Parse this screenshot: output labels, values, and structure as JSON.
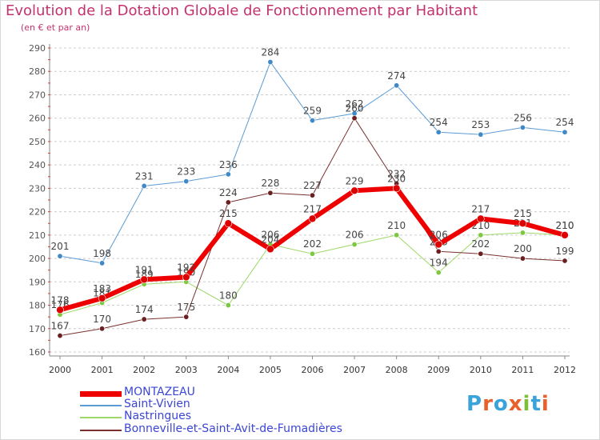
{
  "header": {
    "title": "Evolution de la Dotation Globale de Fonctionnement par Habitant",
    "subtitle": "(en € et par an)"
  },
  "logo": {
    "text": "Proxiti",
    "colors": [
      "#3aa3d9",
      "#e8602c",
      "#3aa3d9",
      "#e8602c",
      "#7bbf3a",
      "#3aa3d9",
      "#e8602c"
    ]
  },
  "colors": {
    "title": "#c4326e",
    "axis": "#555555",
    "grid": "#cccccc",
    "legend_text": "#3b46d4",
    "axis_red_ticks": "#ee2222"
  },
  "chart_data": {
    "type": "line",
    "x": [
      2000,
      2001,
      2002,
      2003,
      2004,
      2005,
      2006,
      2007,
      2008,
      2009,
      2010,
      2011,
      2012
    ],
    "ylim": [
      160,
      290
    ],
    "yticks": [
      160,
      170,
      180,
      190,
      200,
      210,
      220,
      230,
      240,
      250,
      260,
      270,
      280,
      290
    ],
    "grid": "dashed horizontal",
    "legend": "bottom-left",
    "series": [
      {
        "name": "Saint-Vivien",
        "color": "#5b9bd5",
        "width": 1,
        "marker": "#3f89c9",
        "values": [
          201,
          198,
          231,
          233,
          236,
          284,
          259,
          262,
          274,
          254,
          253,
          256,
          254
        ],
        "labels": [
          "201",
          "198",
          "231",
          "233",
          "236",
          "284",
          "259",
          "262",
          "274",
          "254",
          "253",
          "256",
          "254"
        ]
      },
      {
        "name": "Nastringues",
        "color": "#9ed86a",
        "width": 1,
        "marker": "#7cc840",
        "values": [
          176,
          181,
          189,
          190,
          180,
          206,
          202,
          206,
          210,
          194,
          210,
          211,
          210
        ],
        "labels": [
          "176",
          "181",
          "189",
          "190",
          "180",
          "206",
          "202",
          "206",
          "210",
          "194",
          "210",
          "211",
          "210"
        ]
      },
      {
        "name": "Bonneville-et-Saint-Avit-de-Fumadières",
        "color": "#7a3030",
        "width": 1,
        "marker": "#6a2020",
        "values": [
          167,
          170,
          174,
          175,
          224,
          228,
          227,
          260,
          232,
          203,
          202,
          200,
          199
        ],
        "labels": [
          "167",
          "170",
          "174",
          "175",
          "224",
          "228",
          "227",
          "260",
          "232",
          "203",
          "202",
          "200",
          "199"
        ]
      },
      {
        "name": "MONTAZEAU",
        "color": "#ee0000",
        "width": 6,
        "marker": "#dd0000",
        "values": [
          178,
          183,
          191,
          192,
          215,
          204,
          217,
          229,
          230,
          206,
          217,
          215,
          210
        ],
        "labels": [
          "178",
          "183",
          "191",
          "192",
          "215",
          "204",
          "217",
          "229",
          "230",
          "206",
          "217",
          "215",
          "210"
        ]
      }
    ]
  }
}
